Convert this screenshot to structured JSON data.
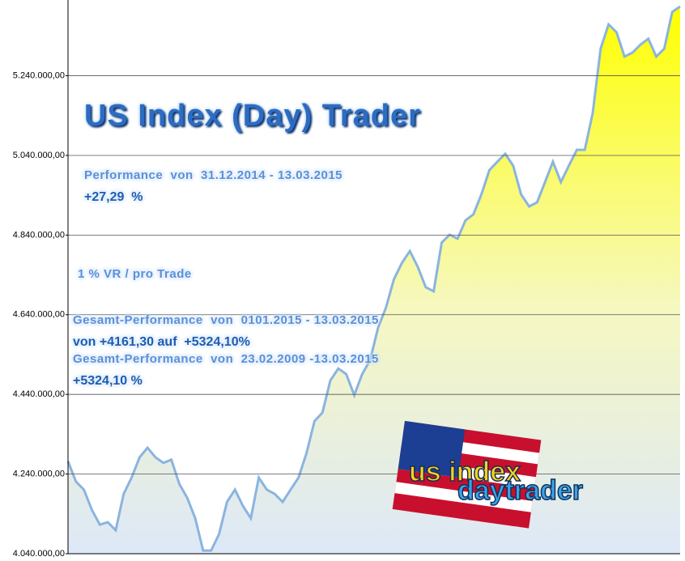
{
  "chart_data": {
    "type": "area",
    "annotations": [
      "US Index (Day) Trader",
      "Performance  von  31.12.2014 - 13.03.2015",
      "+27,29  %",
      "1 % VR / pro Trade",
      "Gesamt-Performance  von  0101.2015 - 13.03.2015",
      "von +4161,30 auf  +5324,10%",
      "Gesamt-Performance  von  23.02.2009 -13.03.2015",
      "+5324,10 %"
    ],
    "logo": {
      "line1": "us index",
      "line2": "daytrader"
    },
    "values": [
      4272000,
      4221000,
      4201000,
      4150000,
      4113000,
      4119000,
      4099000,
      4190000,
      4231000,
      4282000,
      4306000,
      4282000,
      4268000,
      4276000,
      4215000,
      4180000,
      4129000,
      4048000,
      4048000,
      4089000,
      4170000,
      4201000,
      4160000,
      4129000,
      4231000,
      4201000,
      4190000,
      4170000,
      4201000,
      4231000,
      4292000,
      4373000,
      4394000,
      4475000,
      4505000,
      4491000,
      4438000,
      4491000,
      4526000,
      4607000,
      4658000,
      4729000,
      4770000,
      4800000,
      4760000,
      4709000,
      4699000,
      4821000,
      4841000,
      4831000,
      4877000,
      4892000,
      4942000,
      5003000,
      5024000,
      5044000,
      5014000,
      4942000,
      4912000,
      4922000,
      4973000,
      5024000,
      4973000,
      5014000,
      5054000,
      5054000,
      5146000,
      5308000,
      5369000,
      5349000,
      5288000,
      5298000,
      5318000,
      5333000,
      5288000,
      5308000,
      5400000,
      5414000
    ],
    "color": "#ffff00",
    "line_color": "#8ab4e0",
    "ylim": [
      4040000,
      5420000
    ],
    "yticks": [
      {
        "value": 4040000,
        "label": "4.040.000,00"
      },
      {
        "value": 4240000,
        "label": "4.240.000,00"
      },
      {
        "value": 4440000,
        "label": "4.440.000,00"
      },
      {
        "value": 4640000,
        "label": "4.640.000,00"
      },
      {
        "value": 4840000,
        "label": "4.840.000,00"
      },
      {
        "value": 5040000,
        "label": "5.040.000,00"
      },
      {
        "value": 5240000,
        "label": "5.240.000,00"
      }
    ],
    "grid": true
  }
}
